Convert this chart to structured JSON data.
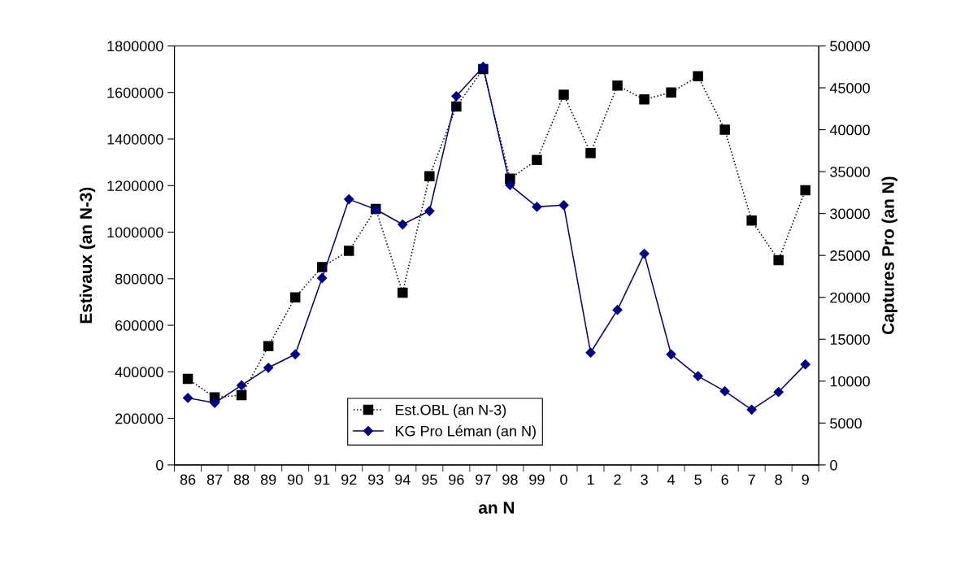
{
  "chart_data": {
    "type": "line",
    "xlabel": "an N",
    "ylabel": "Estivaux (an N-3)",
    "y2label": "Captures Pro (an N)",
    "categories": [
      "86",
      "87",
      "88",
      "89",
      "90",
      "91",
      "92",
      "93",
      "94",
      "95",
      "96",
      "97",
      "98",
      "99",
      "0",
      "1",
      "2",
      "3",
      "4",
      "5",
      "6",
      "7",
      "8",
      "9"
    ],
    "series": [
      {
        "name": "Est.OBL (an N-3)",
        "color": "#000000",
        "marker": "square",
        "line_style": "dotted",
        "values": [
          370000,
          290000,
          300000,
          510000,
          720000,
          850000,
          920000,
          1100000,
          740000,
          1240000,
          1540000,
          1700000,
          1230000,
          1310000,
          1590000,
          1340000,
          1630000,
          1570000,
          1600000,
          1670000,
          1440000,
          1050000,
          880000,
          1180000
        ]
      },
      {
        "name": "KG Pro Léman (an N)",
        "color": "#000080",
        "marker": "diamond",
        "line_style": "solid",
        "axis": "y2",
        "values": [
          8000,
          7400,
          9500,
          11600,
          13200,
          22300,
          31700,
          30500,
          28700,
          30300,
          44000,
          47500,
          33400,
          30800,
          31000,
          13400,
          18500,
          25200,
          13200,
          10600,
          8800,
          6600,
          8700,
          12000
        ]
      }
    ],
    "ylim": [
      0,
      1800000
    ],
    "yticks": [
      0,
      200000,
      400000,
      600000,
      800000,
      1000000,
      1200000,
      1400000,
      1600000,
      1800000
    ],
    "y2lim": [
      0,
      50000
    ],
    "y2ticks": [
      0,
      5000,
      10000,
      15000,
      20000,
      25000,
      30000,
      35000,
      40000,
      45000,
      50000
    ],
    "grid": false,
    "legend": "bottom"
  }
}
